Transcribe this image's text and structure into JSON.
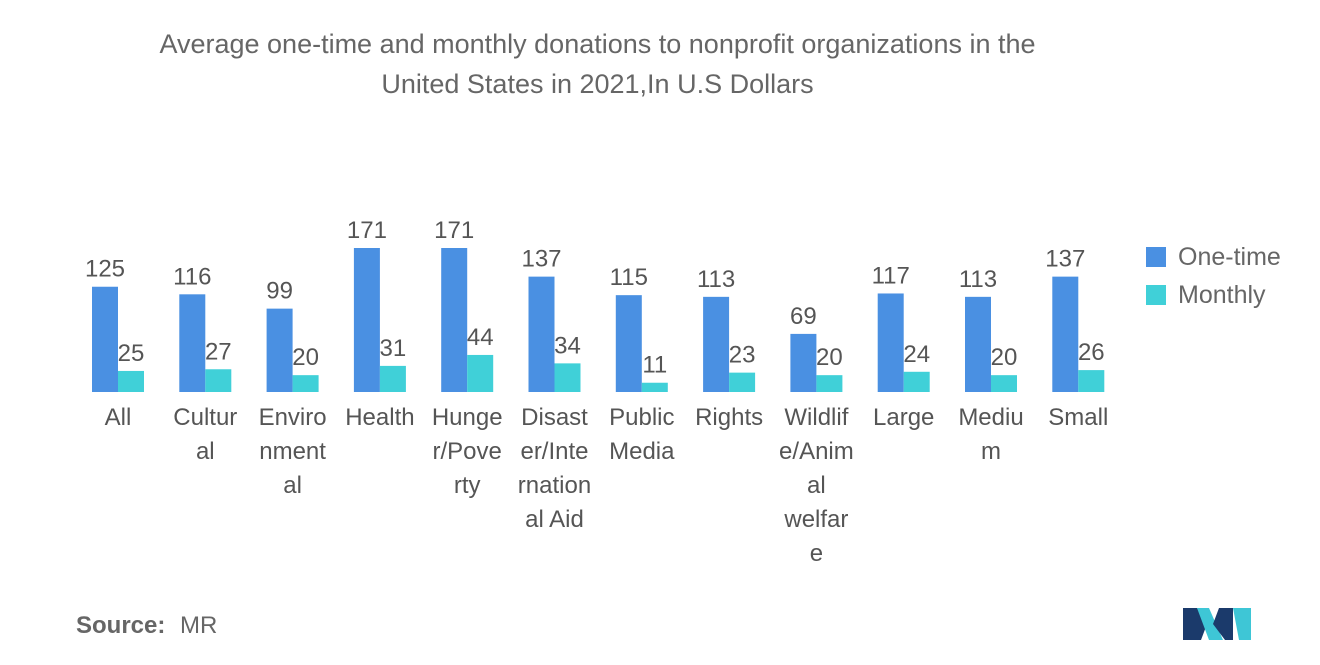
{
  "chart_data": {
    "type": "bar",
    "title": "Average one-time and monthly donations to nonprofit organizations in the United States in 2021,In U.S Dollars",
    "title_lines": [
      "Average one-time and monthly donations to nonprofit organizations in the",
      "United States in 2021,In U.S Dollars"
    ],
    "categories": [
      "All",
      "Cultural",
      "Environmental",
      "Health",
      "Hunger/Poverty",
      "Disaster/International Aid",
      "Public Media",
      "Rights",
      "Wildlife/Animal welfare",
      "Large",
      "Medium",
      "Small"
    ],
    "category_label_lines": [
      [
        "All"
      ],
      [
        "Cultur",
        "al"
      ],
      [
        "Enviro",
        "nment",
        "al"
      ],
      [
        "Health"
      ],
      [
        "Hunge",
        "r/Pove",
        "rty"
      ],
      [
        "Disast",
        "er/Inte",
        "rnation",
        "al Aid"
      ],
      [
        "Public",
        "Media"
      ],
      [
        "Rights"
      ],
      [
        "Wildlif",
        "e/Anim",
        "al",
        "welfar",
        "e"
      ],
      [
        "Large"
      ],
      [
        "Mediu",
        "m"
      ],
      [
        "Small"
      ]
    ],
    "series": [
      {
        "name": "One-time",
        "color": "#4a90e2",
        "values": [
          125,
          116,
          99,
          171,
          171,
          137,
          115,
          113,
          69,
          117,
          113,
          137
        ]
      },
      {
        "name": "Monthly",
        "color": "#40d0d8",
        "values": [
          25,
          27,
          20,
          31,
          44,
          34,
          11,
          23,
          20,
          24,
          20,
          26
        ]
      }
    ],
    "xlabel": "",
    "ylabel": "",
    "ylim": [
      0,
      171
    ],
    "grid": false,
    "legend_position": "right",
    "data_labels": true
  },
  "source": {
    "label": "Source:",
    "value": "MR"
  },
  "logo": {
    "name": "mordor-intelligence-logo",
    "color_dark": "#1b3a6b",
    "color_light": "#3ec6d6"
  }
}
